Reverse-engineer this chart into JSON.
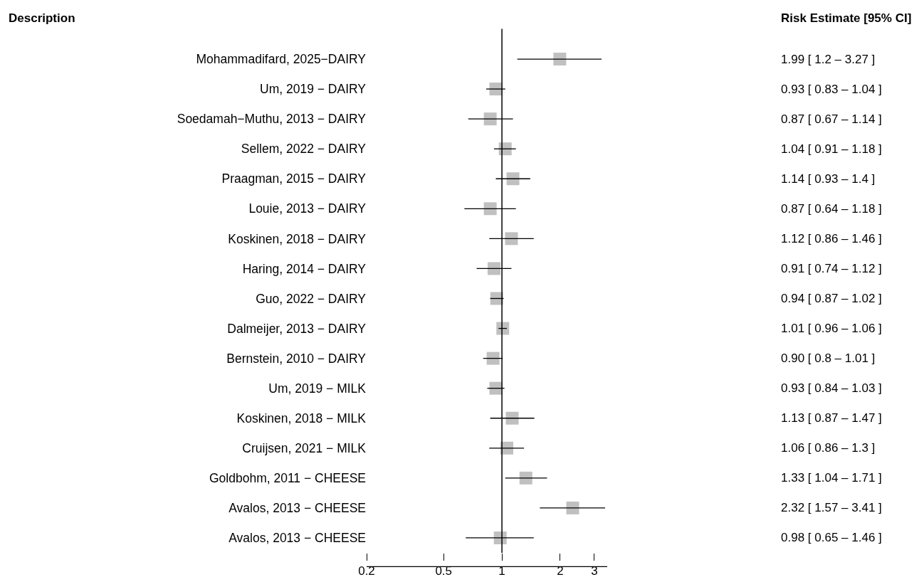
{
  "chart_data": {
    "type": "scatter",
    "orientation": "horizontal",
    "log": "x",
    "marker": "square",
    "color": "#c0c0c0",
    "annotations": [
      "Description",
      "Risk Estimate [95% CI]",
      "1.99 [ 1.2 – 3.27 ]",
      "0.93 [ 0.83 – 1.04 ]",
      "0.87 [ 0.67 – 1.14 ]",
      "1.04 [ 0.91 – 1.18 ]",
      "1.14 [ 0.93 – 1.4 ]",
      "0.87 [ 0.64 – 1.18 ]",
      "1.12 [ 0.86 – 1.46 ]",
      "0.91 [ 0.74 – 1.12 ]",
      "0.94 [ 0.87 – 1.02 ]",
      "1.01 [ 0.96 – 1.06 ]",
      "0.90 [ 0.8 – 1.01 ]",
      "0.93 [ 0.84 – 1.03 ]",
      "1.13 [ 0.87 – 1.47 ]",
      "1.06 [ 0.86 – 1.3 ]",
      "1.33 [ 1.04 – 1.71 ]",
      "2.32 [ 1.57 – 3.41 ]",
      "0.98 [ 0.65 – 1.46 ]"
    ],
    "categories": [
      "Mohammadifard, 2025−DAIRY",
      "Um, 2019 − DAIRY",
      "Soedamah−Muthu, 2013 − DAIRY",
      "Sellem, 2022 − DAIRY",
      "Praagman, 2015 − DAIRY",
      "Louie, 2013 − DAIRY",
      "Koskinen, 2018 − DAIRY",
      "Haring, 2014 − DAIRY",
      "Guo, 2022 − DAIRY",
      "Dalmeijer, 2013 − DAIRY",
      "Bernstein, 2010 − DAIRY",
      "Um, 2019 − MILK",
      "Koskinen, 2018 − MILK",
      "Cruijsen, 2021 − MILK",
      "Goldbohm, 2011 − CHEESE",
      "Avalos, 2013 − CHEESE",
      "Avalos, 2013 − CHEESE"
    ],
    "values": [
      1.99,
      0.93,
      0.87,
      1.04,
      1.14,
      0.87,
      1.12,
      0.91,
      0.94,
      1.01,
      0.9,
      0.93,
      1.13,
      1.06,
      1.33,
      2.32,
      0.98
    ],
    "errors": [
      [
        1.2,
        3.27
      ],
      [
        0.83,
        1.04
      ],
      [
        0.67,
        1.14
      ],
      [
        0.91,
        1.18
      ],
      [
        0.93,
        1.4
      ],
      [
        0.64,
        1.18
      ],
      [
        0.86,
        1.46
      ],
      [
        0.74,
        1.12
      ],
      [
        0.87,
        1.02
      ],
      [
        0.96,
        1.06
      ],
      [
        0.8,
        1.01
      ],
      [
        0.84,
        1.03
      ],
      [
        0.87,
        1.47
      ],
      [
        0.86,
        1.3
      ],
      [
        1.04,
        1.71
      ],
      [
        1.57,
        3.41
      ],
      [
        0.65,
        1.46
      ]
    ],
    "xlim": [
      0.2,
      3.5
    ],
    "xticks": [
      0.2,
      0.5,
      1,
      2,
      3
    ],
    "ref_lines": [
      {
        "axis": "x",
        "value": 1,
        "color": "#000000"
      }
    ]
  }
}
